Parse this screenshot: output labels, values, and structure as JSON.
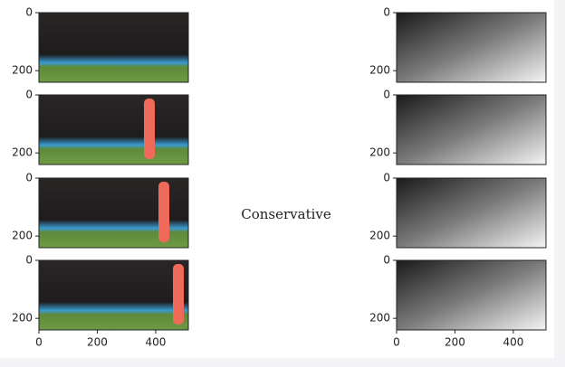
{
  "chart_data": [
    {
      "type": "image",
      "xlim": [
        0,
        512
      ],
      "ylim": [
        240,
        0
      ],
      "yticks": [
        0,
        200
      ]
    },
    {
      "type": "image",
      "xlim": [
        0,
        512
      ],
      "ylim": [
        240,
        0
      ],
      "yticks": [
        0,
        200
      ]
    },
    {
      "type": "image",
      "xlim": [
        0,
        512
      ],
      "ylim": [
        240,
        0
      ],
      "yticks": [
        0,
        200
      ]
    },
    {
      "type": "image",
      "xlim": [
        0,
        512
      ],
      "ylim": [
        240,
        0
      ],
      "yticks": [
        0,
        200
      ]
    },
    {
      "type": "image",
      "xlim": [
        0,
        512
      ],
      "ylim": [
        240,
        0
      ],
      "yticks": [
        0,
        200
      ]
    },
    {
      "type": "image",
      "xlim": [
        0,
        512
      ],
      "ylim": [
        240,
        0
      ],
      "yticks": [
        0,
        200
      ]
    },
    {
      "type": "image",
      "xlim": [
        0,
        512
      ],
      "ylim": [
        240,
        0
      ],
      "yticks": [
        0,
        200
      ],
      "xticks": [
        0,
        200,
        400
      ]
    },
    {
      "type": "image",
      "xlim": [
        0,
        512
      ],
      "ylim": [
        240,
        0
      ],
      "yticks": [
        0,
        200
      ],
      "xticks": [
        0,
        200,
        400
      ]
    }
  ],
  "figure_text": "Conservative"
}
